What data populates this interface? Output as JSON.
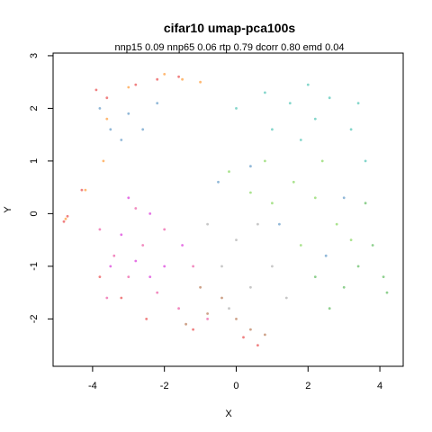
{
  "chart_data": {
    "type": "scatter",
    "title": "cifar10 umap-pca100s",
    "subtitle": "nnp15 0.09 nnp65 0.06 rtp 0.79 dcorr 0.80 emd 0.04",
    "xlabel": "X",
    "ylabel": "Y",
    "xlim": [
      -5.1,
      4.65
    ],
    "ylim": [
      -2.9,
      3.05
    ],
    "xticks": [
      {
        "value": -4,
        "label": "-4"
      },
      {
        "value": -2,
        "label": "-2"
      },
      {
        "value": 0,
        "label": "0"
      },
      {
        "value": 2,
        "label": "2"
      },
      {
        "value": 4,
        "label": "4"
      }
    ],
    "yticks": [
      {
        "value": -2,
        "label": "-2"
      },
      {
        "value": -1,
        "label": "-1"
      },
      {
        "value": 0,
        "label": "0"
      },
      {
        "value": 1,
        "label": "1"
      },
      {
        "value": 2,
        "label": "2"
      },
      {
        "value": 3,
        "label": "3"
      }
    ],
    "grid": false,
    "legend": "none",
    "series": [
      {
        "color": "#e31a1c",
        "points": [
          [
            -3.9,
            2.35
          ],
          [
            -2.2,
            2.55
          ],
          [
            -1.6,
            2.6
          ],
          [
            -3.6,
            2.2
          ],
          [
            -2.8,
            2.45
          ],
          [
            -4.3,
            0.45
          ],
          [
            -4.8,
            -0.15
          ],
          [
            -4.7,
            -0.05
          ],
          [
            -3.8,
            -1.2
          ],
          [
            -2.5,
            -2.0
          ],
          [
            0.2,
            -2.35
          ],
          [
            0.6,
            -2.5
          ],
          [
            -1.2,
            -2.2
          ],
          [
            -3.2,
            -1.6
          ]
        ]
      },
      {
        "color": "#ff7f00",
        "points": [
          [
            -2.0,
            2.65
          ],
          [
            -1.5,
            2.55
          ],
          [
            -3.0,
            2.4
          ],
          [
            -4.2,
            0.45
          ],
          [
            -4.75,
            -0.1
          ],
          [
            -3.7,
            1.0
          ],
          [
            -3.6,
            1.8
          ],
          [
            -1.0,
            2.5
          ]
        ]
      },
      {
        "color": "#e7298a",
        "points": [
          [
            -3.4,
            -0.8
          ],
          [
            -3.0,
            -1.2
          ],
          [
            -2.6,
            -0.6
          ],
          [
            -2.2,
            -1.5
          ],
          [
            -1.6,
            -1.8
          ],
          [
            -1.2,
            -1.0
          ],
          [
            -3.8,
            -0.3
          ],
          [
            -3.6,
            -1.6
          ],
          [
            -0.8,
            -2.0
          ],
          [
            -2.0,
            -0.3
          ],
          [
            -2.8,
            0.1
          ]
        ]
      },
      {
        "color": "#d000d0",
        "points": [
          [
            -3.2,
            -0.4
          ],
          [
            -2.8,
            -0.9
          ],
          [
            -2.4,
            -1.2
          ],
          [
            -3.5,
            -1.0
          ],
          [
            -2.0,
            -1.0
          ],
          [
            -1.5,
            -0.6
          ],
          [
            -3.0,
            0.3
          ],
          [
            -2.4,
            0.0
          ]
        ]
      },
      {
        "color": "#377eb8",
        "points": [
          [
            -3.5,
            1.6
          ],
          [
            -3.2,
            1.4
          ],
          [
            -3.0,
            1.9
          ],
          [
            -2.6,
            1.6
          ],
          [
            -2.2,
            2.1
          ],
          [
            -3.8,
            2.0
          ],
          [
            -0.5,
            0.6
          ],
          [
            0.4,
            0.9
          ],
          [
            1.2,
            -0.2
          ],
          [
            2.5,
            -0.8
          ],
          [
            3.0,
            0.3
          ]
        ]
      },
      {
        "color": "#1fb4a0",
        "points": [
          [
            0.8,
            2.3
          ],
          [
            1.5,
            2.1
          ],
          [
            2.2,
            1.8
          ],
          [
            2.6,
            2.2
          ],
          [
            3.2,
            1.6
          ],
          [
            3.6,
            1.0
          ],
          [
            1.0,
            1.6
          ],
          [
            1.8,
            1.4
          ],
          [
            0.0,
            2.0
          ],
          [
            2.0,
            2.45
          ],
          [
            3.4,
            2.1
          ]
        ]
      },
      {
        "color": "#66cc33",
        "points": [
          [
            1.6,
            0.6
          ],
          [
            2.2,
            0.3
          ],
          [
            2.8,
            -0.2
          ],
          [
            1.0,
            0.2
          ],
          [
            0.4,
            0.4
          ],
          [
            1.8,
            -0.6
          ],
          [
            2.4,
            1.0
          ],
          [
            3.2,
            -0.5
          ],
          [
            0.8,
            1.0
          ],
          [
            -0.2,
            0.8
          ]
        ]
      },
      {
        "color": "#33aa33",
        "points": [
          [
            3.4,
            -1.0
          ],
          [
            3.8,
            -0.6
          ],
          [
            4.1,
            -1.2
          ],
          [
            3.0,
            -1.4
          ],
          [
            2.6,
            -1.8
          ],
          [
            4.2,
            -1.5
          ],
          [
            3.6,
            0.2
          ],
          [
            2.2,
            -1.2
          ]
        ]
      },
      {
        "color": "#999999",
        "points": [
          [
            0.0,
            -0.5
          ],
          [
            -0.4,
            -1.0
          ],
          [
            0.4,
            -1.4
          ],
          [
            1.0,
            -1.0
          ],
          [
            -0.8,
            -0.2
          ],
          [
            0.6,
            -0.2
          ],
          [
            1.4,
            -1.6
          ],
          [
            -0.2,
            -1.8
          ]
        ]
      },
      {
        "color": "#a65628",
        "points": [
          [
            -0.4,
            -1.6
          ],
          [
            -0.8,
            -1.9
          ],
          [
            0.0,
            -2.0
          ],
          [
            0.4,
            -2.2
          ],
          [
            -1.0,
            -1.4
          ],
          [
            0.8,
            -2.3
          ],
          [
            -1.4,
            -2.1
          ]
        ]
      }
    ]
  }
}
